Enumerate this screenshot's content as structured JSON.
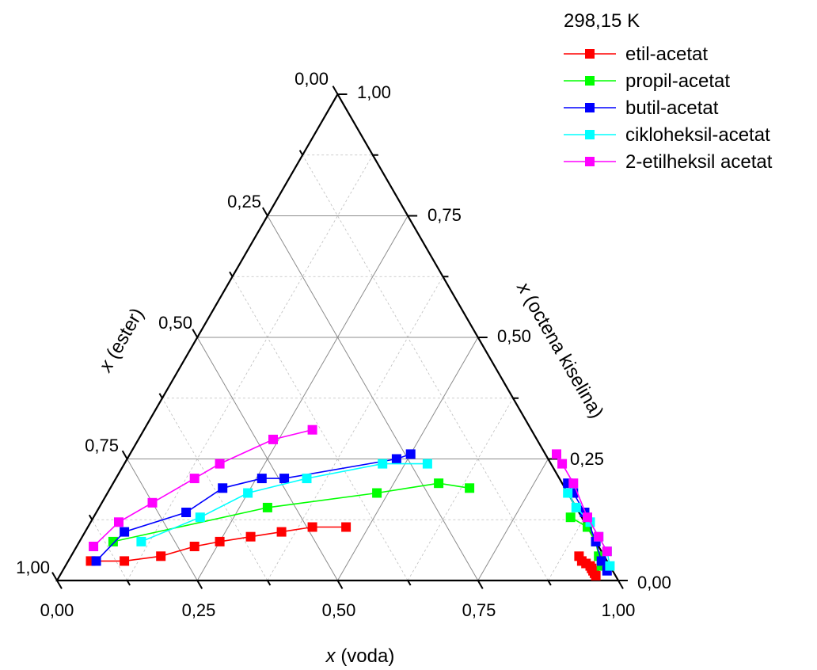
{
  "chart_data": {
    "type": "scatter",
    "subtype": "ternary",
    "axes": {
      "bottom": {
        "label_var": "x",
        "label_rest": "(voda)",
        "ticks": [
          "0,00",
          "0,25",
          "0,50",
          "0,75",
          "1,00"
        ]
      },
      "left": {
        "label_var": "x",
        "label_rest": "(ester)",
        "ticks": [
          "0,00",
          "0,25",
          "0,50",
          "0,75",
          "1,00"
        ]
      },
      "right": {
        "label_var": "x",
        "label_rest": "(octena kiselina)",
        "ticks": [
          "0,00",
          "0,25",
          "0,50",
          "0,75",
          "1,00"
        ]
      }
    },
    "grid": true,
    "legend": {
      "title": "298,15 K",
      "position": "top-right"
    },
    "series": [
      {
        "name": "etil-acetat",
        "color": "#ff0000",
        "left_curve": [
          [
            0.04,
            0.04
          ],
          [
            0.1,
            0.04
          ],
          [
            0.16,
            0.05
          ],
          [
            0.21,
            0.07
          ],
          [
            0.25,
            0.08
          ],
          [
            0.3,
            0.09
          ],
          [
            0.35,
            0.1
          ],
          [
            0.4,
            0.11
          ],
          [
            0.46,
            0.11
          ]
        ],
        "right_curve": [
          [
            0.905,
            0.05
          ],
          [
            0.915,
            0.04
          ],
          [
            0.925,
            0.035
          ],
          [
            0.935,
            0.03
          ],
          [
            0.94,
            0.025
          ],
          [
            0.945,
            0.02
          ],
          [
            0.95,
            0.015
          ],
          [
            0.955,
            0.01
          ]
        ]
      },
      {
        "name": "propil-acetat",
        "color": "#00ff00",
        "left_curve": [
          [
            0.06,
            0.08
          ],
          [
            0.3,
            0.15
          ],
          [
            0.48,
            0.18
          ],
          [
            0.58,
            0.2
          ],
          [
            0.64,
            0.19
          ]
        ],
        "right_curve": [
          [
            0.85,
            0.13
          ],
          [
            0.89,
            0.11
          ],
          [
            0.92,
            0.08
          ],
          [
            0.94,
            0.05
          ],
          [
            0.955,
            0.03
          ]
        ]
      },
      {
        "name": "butil-acetat",
        "color": "#0000ff",
        "left_curve": [
          [
            0.05,
            0.04
          ],
          [
            0.07,
            0.1
          ],
          [
            0.16,
            0.14
          ],
          [
            0.2,
            0.19
          ],
          [
            0.26,
            0.21
          ],
          [
            0.3,
            0.21
          ],
          [
            0.48,
            0.25
          ],
          [
            0.5,
            0.26
          ]
        ],
        "right_curve": [
          [
            0.81,
            0.2
          ],
          [
            0.83,
            0.18
          ],
          [
            0.87,
            0.14
          ],
          [
            0.92,
            0.08
          ],
          [
            0.95,
            0.04
          ],
          [
            0.97,
            0.02
          ]
        ]
      },
      {
        "name": "cikloheksil-acetat",
        "color": "#00ffff",
        "left_curve": [
          [
            0.11,
            0.08
          ],
          [
            0.19,
            0.13
          ],
          [
            0.25,
            0.18
          ],
          [
            0.34,
            0.21
          ],
          [
            0.46,
            0.24
          ],
          [
            0.54,
            0.24
          ]
        ],
        "right_curve": [
          [
            0.82,
            0.18
          ],
          [
            0.85,
            0.15
          ],
          [
            0.89,
            0.12
          ],
          [
            0.92,
            0.09
          ],
          [
            0.95,
            0.06
          ],
          [
            0.97,
            0.03
          ]
        ]
      },
      {
        "name": "2-etilheksil acetat",
        "color": "#ff00ff",
        "left_curve": [
          [
            0.03,
            0.07
          ],
          [
            0.05,
            0.12
          ],
          [
            0.09,
            0.16
          ],
          [
            0.14,
            0.21
          ],
          [
            0.17,
            0.24
          ],
          [
            0.24,
            0.29
          ],
          [
            0.3,
            0.31
          ]
        ],
        "right_curve": [
          [
            0.76,
            0.26
          ],
          [
            0.78,
            0.24
          ],
          [
            0.82,
            0.2
          ],
          [
            0.88,
            0.13
          ],
          [
            0.92,
            0.09
          ],
          [
            0.95,
            0.06
          ]
        ]
      }
    ]
  }
}
